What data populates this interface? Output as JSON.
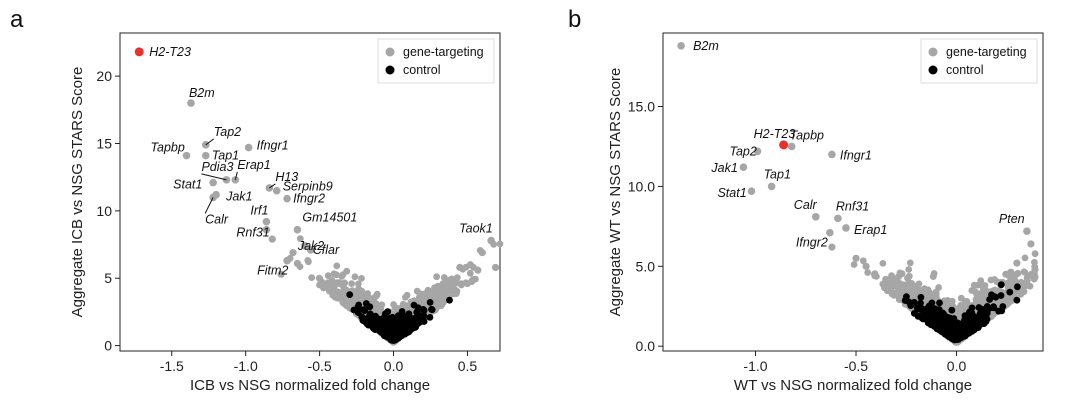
{
  "panels": [
    {
      "letter": "a"
    },
    {
      "letter": "b"
    }
  ],
  "chart_data": [
    {
      "type": "scatter",
      "xlabel": "ICB vs NSG normalized fold change",
      "ylabel": "Aggregate ICB vs NSG STARS Score",
      "xlim": [
        -1.85,
        0.72
      ],
      "ylim": [
        -0.4,
        23.2
      ],
      "xticks": [
        -1.5,
        -1.0,
        -0.5,
        0.0,
        0.5
      ],
      "xtick_labels": [
        "-1.5",
        "-1.0",
        "-0.5",
        "0.0",
        "0.5"
      ],
      "yticks": [
        0,
        5,
        10,
        15,
        20
      ],
      "ytick_labels": [
        "0",
        "5",
        "10",
        "15",
        "20"
      ],
      "legend": {
        "position": "top-right",
        "entries": [
          {
            "label": "gene-targeting",
            "color": "#a6a6a6"
          },
          {
            "label": "control",
            "color": "#000000"
          }
        ]
      },
      "colors": {
        "highlight": "#e8312f",
        "gene": "#a6a6a6",
        "control": "#000000"
      },
      "highlight": [
        {
          "x": -1.72,
          "y": 21.8,
          "label": "H2-T23"
        }
      ],
      "labeled_points": [
        {
          "x": -1.37,
          "y": 18.0,
          "label": "B2m"
        },
        {
          "x": -1.27,
          "y": 14.9,
          "label": "Tap2"
        },
        {
          "x": -1.4,
          "y": 14.1,
          "label": "Tapbp"
        },
        {
          "x": -1.27,
          "y": 14.1,
          "label": "Tap1"
        },
        {
          "x": -0.98,
          "y": 14.7,
          "label": "Ifngr1"
        },
        {
          "x": -1.13,
          "y": 12.3,
          "label": "Pdia3"
        },
        {
          "x": -1.07,
          "y": 12.3,
          "label": "Erap1"
        },
        {
          "x": -1.22,
          "y": 12.1,
          "label": "Stat1"
        },
        {
          "x": -1.2,
          "y": 11.2,
          "label": "Jak1"
        },
        {
          "x": -1.22,
          "y": 11.0,
          "label": "Calr"
        },
        {
          "x": -0.84,
          "y": 11.7,
          "label": "H13"
        },
        {
          "x": -0.79,
          "y": 11.5,
          "label": "Serpinb9"
        },
        {
          "x": -0.72,
          "y": 10.9,
          "label": "Ifngr2"
        },
        {
          "x": -0.86,
          "y": 9.2,
          "label": "Irf1"
        },
        {
          "x": -0.86,
          "y": 8.6,
          "label": "Rnf31"
        },
        {
          "x": -0.65,
          "y": 8.6,
          "label": "Gm14501"
        },
        {
          "x": -0.56,
          "y": 7.1,
          "label": "Cflar"
        },
        {
          "x": -0.6,
          "y": 7.4,
          "label": "Jak2"
        },
        {
          "x": -0.72,
          "y": 6.3,
          "label": "Fitm2"
        },
        {
          "x": 0.66,
          "y": 7.8,
          "label": "Taok1"
        }
      ],
      "other_points": [
        [
          -0.76,
          5.3
        ],
        [
          -0.65,
          6.1
        ],
        [
          -0.68,
          6.9
        ],
        [
          -0.82,
          7.9
        ],
        [
          0.52,
          6.0
        ],
        [
          0.57,
          5.6
        ],
        [
          0.69,
          5.8
        ],
        [
          0.6,
          6.9
        ]
      ],
      "background_points": {
        "gene_count": 1400,
        "control_count": 500
      }
    },
    {
      "type": "scatter",
      "xlabel": "WT vs NSG normalized fold change",
      "ylabel": "Aggregate WT vs NSG STARS Score",
      "xlim": [
        -1.46,
        0.43
      ],
      "ylim": [
        -0.3,
        19.6
      ],
      "xticks": [
        -1.0,
        -0.5,
        0.0
      ],
      "xtick_labels": [
        "-1.0",
        "-0.5",
        "0.0"
      ],
      "yticks": [
        0,
        5,
        10,
        15
      ],
      "ytick_labels": [
        "0.0",
        "5.0",
        "10.0",
        "15.0"
      ],
      "legend": {
        "position": "top-right",
        "entries": [
          {
            "label": "gene-targeting",
            "color": "#a6a6a6"
          },
          {
            "label": "control",
            "color": "#000000"
          }
        ]
      },
      "colors": {
        "highlight": "#e8312f",
        "gene": "#a6a6a6",
        "control": "#000000"
      },
      "highlight": [
        {
          "x": -0.86,
          "y": 12.6,
          "label": "H2-T23"
        }
      ],
      "labeled_points": [
        {
          "x": -1.37,
          "y": 18.8,
          "label": "B2m"
        },
        {
          "x": -0.82,
          "y": 12.5,
          "label": "Tapbp"
        },
        {
          "x": -0.99,
          "y": 12.2,
          "label": "Tap2"
        },
        {
          "x": -0.62,
          "y": 12.0,
          "label": "Ifngr1"
        },
        {
          "x": -1.06,
          "y": 11.2,
          "label": "Jak1"
        },
        {
          "x": -0.92,
          "y": 10.0,
          "label": "Tap1"
        },
        {
          "x": -1.02,
          "y": 9.7,
          "label": "Stat1"
        },
        {
          "x": -0.7,
          "y": 8.1,
          "label": "Calr"
        },
        {
          "x": -0.59,
          "y": 8.0,
          "label": "Rnf31"
        },
        {
          "x": -0.63,
          "y": 7.1,
          "label": "Ifngr2"
        },
        {
          "x": -0.55,
          "y": 7.4,
          "label": "Erap1"
        },
        {
          "x": 0.35,
          "y": 7.2,
          "label": "Pten"
        }
      ],
      "other_points": [
        [
          -0.62,
          6.2
        ],
        [
          -0.5,
          5.5
        ],
        [
          -0.45,
          5.0
        ],
        [
          0.37,
          6.4
        ],
        [
          0.39,
          4.8
        ],
        [
          0.3,
          5.2
        ]
      ],
      "background_points": {
        "gene_count": 1400,
        "control_count": 500
      }
    }
  ]
}
